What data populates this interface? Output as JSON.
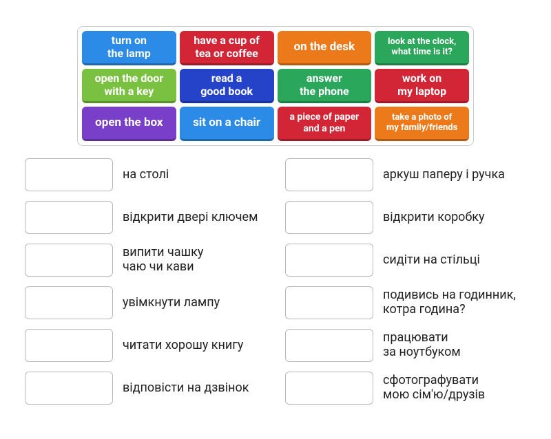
{
  "tray": {
    "border_color": "#cccccc",
    "tiles": [
      {
        "id": "turn-on-lamp",
        "label": "turn on\nthe lamp",
        "color": "#2b8be6",
        "fontsize": 16
      },
      {
        "id": "cup-tea-coffee",
        "label": "have a cup of\ntea or coffee",
        "color": "#d22637",
        "fontsize": 16
      },
      {
        "id": "on-the-desk",
        "label": "on the desk",
        "color": "#ed7a1a",
        "fontsize": 17
      },
      {
        "id": "look-at-clock",
        "label": "look at the clock,\nwhat time is it?",
        "color": "#2aa75a",
        "fontsize": 13
      },
      {
        "id": "open-door-key",
        "label": "open the door\nwith a key",
        "color": "#7ac142",
        "fontsize": 16
      },
      {
        "id": "read-good-book",
        "label": "read a\ngood book",
        "color": "#2443c9",
        "fontsize": 16
      },
      {
        "id": "answer-phone",
        "label": "answer\nthe phone",
        "color": "#2aa75a",
        "fontsize": 16
      },
      {
        "id": "work-on-laptop",
        "label": "work on\nmy laptop",
        "color": "#d22637",
        "fontsize": 16
      },
      {
        "id": "open-the-box",
        "label": "open the box",
        "color": "#7a3fc9",
        "fontsize": 17
      },
      {
        "id": "sit-on-chair",
        "label": "sit on a chair",
        "color": "#2b8be6",
        "fontsize": 17
      },
      {
        "id": "paper-and-pen",
        "label": "a piece of paper\nand a pen",
        "color": "#d22637",
        "fontsize": 14
      },
      {
        "id": "take-photo",
        "label": "take a photo of\nmy family/friends",
        "color": "#ed7a1a",
        "fontsize": 13
      }
    ]
  },
  "slots": {
    "left": [
      {
        "id": "slot-on-desk",
        "label": "на столі"
      },
      {
        "id": "slot-open-door",
        "label": "відкрити двері ключем"
      },
      {
        "id": "slot-cup-tea",
        "label": "випити чашку\nчаю чи кави"
      },
      {
        "id": "slot-turn-on-lamp",
        "label": "увімкнути лампу"
      },
      {
        "id": "slot-read-book",
        "label": "читати хорошу книгу"
      },
      {
        "id": "slot-answer-phone",
        "label": "відповісти на дзвінок"
      }
    ],
    "right": [
      {
        "id": "slot-paper-pen",
        "label": "аркуш паперу і ручка"
      },
      {
        "id": "slot-open-box",
        "label": "відкрити коробку"
      },
      {
        "id": "slot-sit-chair",
        "label": "сидіти на стільці"
      },
      {
        "id": "slot-look-clock",
        "label": "подивись на годинник,\nкотра година?"
      },
      {
        "id": "slot-work-laptop",
        "label": "працювати\nза ноутбуком"
      },
      {
        "id": "slot-take-photo",
        "label": "сфотографувати\nмою сім'ю/друзів"
      }
    ]
  },
  "style": {
    "body_bg": "#ffffff",
    "slot_border": "#b8b8b8",
    "label_color": "#222222",
    "label_fontsize": 18
  }
}
